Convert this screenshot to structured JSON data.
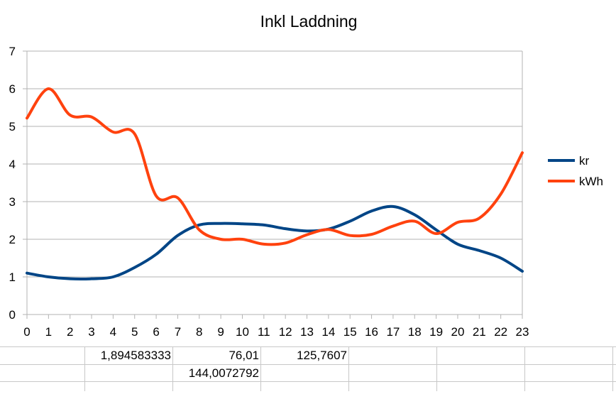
{
  "chart_data": {
    "type": "line",
    "title": "Inkl Laddning",
    "x": [
      0,
      1,
      2,
      3,
      4,
      5,
      6,
      7,
      8,
      9,
      10,
      11,
      12,
      13,
      14,
      15,
      16,
      17,
      18,
      19,
      20,
      21,
      22,
      23
    ],
    "ylim": [
      0,
      7
    ],
    "yticks": [
      0,
      1,
      2,
      3,
      4,
      5,
      6,
      7
    ],
    "grid": "horizontal",
    "legend": "right",
    "series": [
      {
        "name": "kr",
        "color": "#004586",
        "values": [
          1.1,
          1.0,
          0.95,
          0.95,
          1.0,
          1.25,
          1.6,
          2.1,
          2.38,
          2.42,
          2.41,
          2.38,
          2.28,
          2.22,
          2.27,
          2.48,
          2.75,
          2.87,
          2.65,
          2.25,
          1.87,
          1.7,
          1.5,
          1.15
        ]
      },
      {
        "name": "kWh",
        "color": "#ff420e",
        "values": [
          5.22,
          6.0,
          5.3,
          5.25,
          4.85,
          4.8,
          3.15,
          3.1,
          2.25,
          2.0,
          2.0,
          1.87,
          1.9,
          2.12,
          2.26,
          2.1,
          2.13,
          2.35,
          2.48,
          2.15,
          2.45,
          2.56,
          3.2,
          4.3
        ]
      }
    ]
  },
  "sheet": {
    "cells": [
      {
        "row": 1,
        "col": 1,
        "text": "1,894583333"
      },
      {
        "row": 1,
        "col": 2,
        "text": "76,01"
      },
      {
        "row": 1,
        "col": 3,
        "text": "125,7607"
      },
      {
        "row": 2,
        "col": 2,
        "text": "144,0072792"
      }
    ]
  }
}
